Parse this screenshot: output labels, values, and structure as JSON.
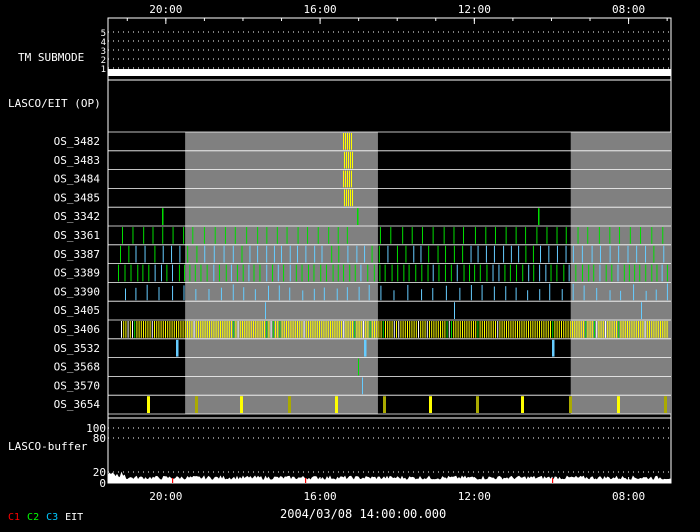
{
  "time_axis": {
    "top_ticks": [
      "20:00",
      "16:00",
      "12:00",
      "08:00"
    ],
    "bottom_ticks": [
      "20:00",
      "16:00",
      "12:00",
      "08:00"
    ],
    "timestamp": "2004/03/08 14:00:00.000",
    "start_hour": 21.5,
    "end_hour": 6.9
  },
  "panels": {
    "tm_submode": {
      "label": "TM SUBMODE",
      "levels": [
        "5",
        "4",
        "3",
        "2",
        "1"
      ],
      "active_level": "1"
    },
    "lasco_eit": {
      "label": "LASCO/EIT (OP)"
    },
    "lasco_buffer": {
      "label": "LASCO-buffer",
      "ticks": [
        "100",
        "80",
        "20",
        "0"
      ]
    }
  },
  "gray_periods": [
    {
      "start_hour": 19.5,
      "end_hour": 14.5
    },
    {
      "start_hour": 9.5,
      "end_hour": 6.9
    }
  ],
  "rows": [
    {
      "id": "OS_3482",
      "label": "OS_3482"
    },
    {
      "id": "OS_3483",
      "label": "OS_3483"
    },
    {
      "id": "OS_3484",
      "label": "OS_3484"
    },
    {
      "id": "OS_3485",
      "label": "OS_3485"
    },
    {
      "id": "OS_3342",
      "label": "OS_3342"
    },
    {
      "id": "OS_3361",
      "label": "OS_3361"
    },
    {
      "id": "OS_3387",
      "label": "OS_3387"
    },
    {
      "id": "OS_3389",
      "label": "OS_3389"
    },
    {
      "id": "OS_3390",
      "label": "OS_3390"
    },
    {
      "id": "OS_3405",
      "label": "OS_3405"
    },
    {
      "id": "OS_3406",
      "label": "OS_3406"
    },
    {
      "id": "OS_3532",
      "label": "OS_3532"
    },
    {
      "id": "OS_3568",
      "label": "OS_3568"
    },
    {
      "id": "OS_3570",
      "label": "OS_3570"
    },
    {
      "id": "OS_3654",
      "label": "OS_3654"
    }
  ],
  "colors": {
    "c1": "#ff0000",
    "c2": "#00ff00",
    "c3": "#00c8ff",
    "eit": "#ffffff",
    "yellow": "#ffff00",
    "green": "#00dd00",
    "blue": "#66ccff",
    "gray": "#808080",
    "olive": "#aaaa00"
  },
  "legend": [
    {
      "label": "C1",
      "color": "#ff0000"
    },
    {
      "label": "C2",
      "color": "#00ff00"
    },
    {
      "label": "C3",
      "color": "#00c8ff"
    },
    {
      "label": "EIT",
      "color": "#ffffff"
    }
  ]
}
